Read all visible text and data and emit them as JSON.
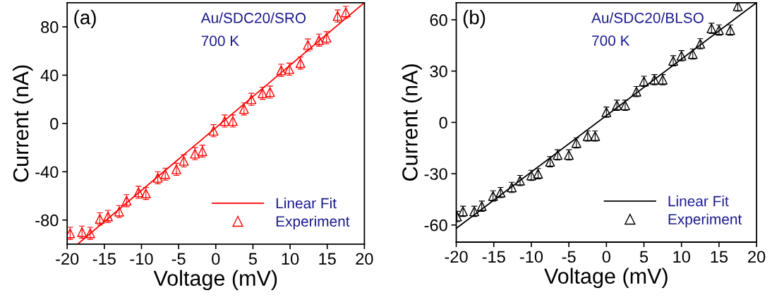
{
  "chart_data": [
    {
      "type": "scatter",
      "xlabel": "Voltage (mV)",
      "ylabel": "Current (nA)",
      "xlim": [
        -20,
        20
      ],
      "xticks": [
        -20,
        -15,
        -10,
        -5,
        0,
        5,
        10,
        15,
        20
      ],
      "ylim": [
        -100,
        100
      ],
      "yticks": [
        -80,
        -40,
        0,
        40,
        80
      ],
      "legend": "bottom right",
      "grid": false,
      "annotations": [
        "(a)",
        "Au/SDC20/SRO",
        "700 K"
      ],
      "series": [
        {
          "type": "line",
          "name": "Linear Fit",
          "color": "#ff0000",
          "line_style": "solid",
          "marker": "none",
          "x": [
            -18.6,
            20
          ],
          "values": [
            -100,
            100
          ]
        },
        {
          "name": "Experiment",
          "color": "#ff0000",
          "marker": "triangle",
          "x": [
            -19.6,
            -18.0,
            -16.9,
            -15.6,
            -14.5,
            -13.0,
            -12.0,
            -10.4,
            -9.4,
            -7.8,
            -6.8,
            -5.3,
            -4.3,
            -2.8,
            -1.8,
            -0.3,
            1.2,
            2.3,
            3.8,
            4.8,
            6.3,
            7.3,
            8.8,
            9.9,
            11.4,
            12.4,
            13.9,
            14.9,
            16.4,
            17.5
          ],
          "values": [
            -91,
            -90,
            -91,
            -79,
            -77,
            -73,
            -64,
            -57,
            -58,
            -45,
            -42,
            -38,
            -31,
            -25,
            -23,
            -6,
            2,
            2,
            12,
            20,
            25,
            26,
            44,
            45,
            50,
            65,
            69,
            71,
            89,
            92
          ],
          "errors": [
            5,
            5,
            5,
            5,
            5,
            5,
            5,
            5,
            5,
            5,
            5,
            5,
            5,
            5,
            5,
            5,
            5,
            5,
            5,
            5,
            5,
            5,
            5,
            5,
            5,
            5,
            5,
            5,
            5,
            5
          ]
        }
      ]
    },
    {
      "type": "scatter",
      "xlabel": "Voltage (mV)",
      "ylabel": "Current (nA)",
      "xlim": [
        -20,
        20
      ],
      "xticks": [
        -20,
        -15,
        -10,
        -5,
        0,
        5,
        10,
        15,
        20
      ],
      "ylim": [
        -70,
        70
      ],
      "yticks": [
        -60,
        -30,
        0,
        30,
        60
      ],
      "legend": "bottom right",
      "grid": false,
      "annotations": [
        "(b)",
        "Au/SDC20/BLSO",
        "700 K"
      ],
      "series": [
        {
          "type": "line",
          "name": "Linear Fit",
          "color": "#000000",
          "line_style": "solid",
          "marker": "none",
          "x": [
            -20,
            20
          ],
          "values": [
            -62,
            70
          ]
        },
        {
          "name": "Experiment",
          "color": "#000000",
          "marker": "triangle",
          "x": [
            -19.9,
            -19.1,
            -17.6,
            -16.6,
            -15.1,
            -14.1,
            -12.6,
            -11.5,
            -10.0,
            -9.1,
            -7.5,
            -6.5,
            -5.0,
            -4.0,
            -2.5,
            -1.5,
            0.0,
            1.4,
            2.5,
            4.0,
            5.0,
            6.4,
            7.5,
            8.9,
            10.0,
            11.5,
            12.5,
            14.0,
            15.0,
            16.5,
            17.5
          ],
          "values": [
            -55,
            -52,
            -52,
            -49,
            -43,
            -41,
            -38,
            -34,
            -31,
            -30,
            -23,
            -19,
            -19,
            -12,
            -8,
            -8,
            6,
            10,
            10,
            18,
            24,
            25,
            25,
            36,
            39,
            40,
            46,
            55,
            54,
            54,
            68
          ],
          "errors": [
            3,
            3,
            3,
            3,
            3,
            3,
            3,
            3,
            3,
            3,
            3,
            3,
            3,
            3,
            3,
            3,
            3,
            3,
            3,
            3,
            3,
            3,
            3,
            3,
            3,
            3,
            3,
            3,
            3,
            3,
            3
          ]
        }
      ]
    }
  ]
}
